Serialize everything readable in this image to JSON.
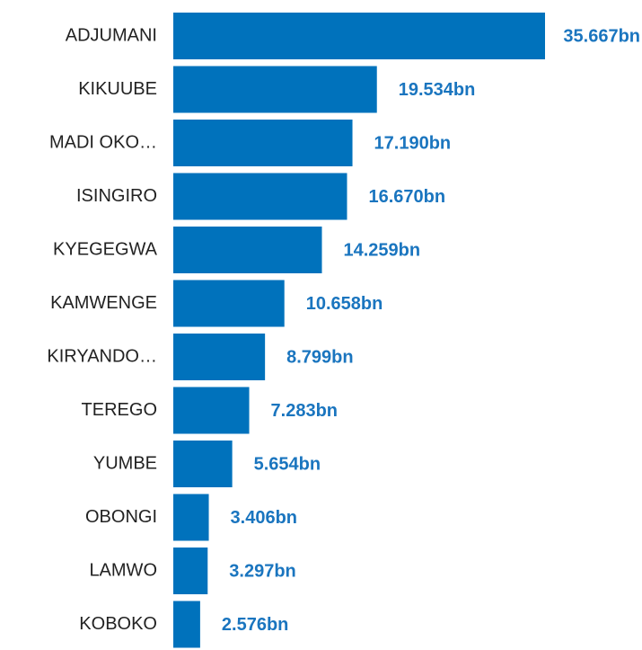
{
  "chart_data": {
    "type": "bar",
    "orientation": "horizontal",
    "categories": [
      "ADJUMANI",
      "KIKUUBE",
      "MADI OKO…",
      "ISINGIRO",
      "KYEGEGWA",
      "KAMWENGE",
      "KIRYANDO…",
      "TEREGO",
      "YUMBE",
      "OBONGI",
      "LAMWO",
      "KOBOKO"
    ],
    "values": [
      35.667,
      19.534,
      17.19,
      16.67,
      14.259,
      10.658,
      8.799,
      7.283,
      5.654,
      3.406,
      3.297,
      2.576
    ],
    "value_labels": [
      "35.667bn",
      "19.534bn",
      "17.190bn",
      "16.670bn",
      "14.259bn",
      "10.658bn",
      "8.799bn",
      "7.283bn",
      "5.654bn",
      "3.406bn",
      "3.297bn",
      "2.576bn"
    ],
    "color": "#0072bc",
    "label_color": "#1a75bf"
  }
}
